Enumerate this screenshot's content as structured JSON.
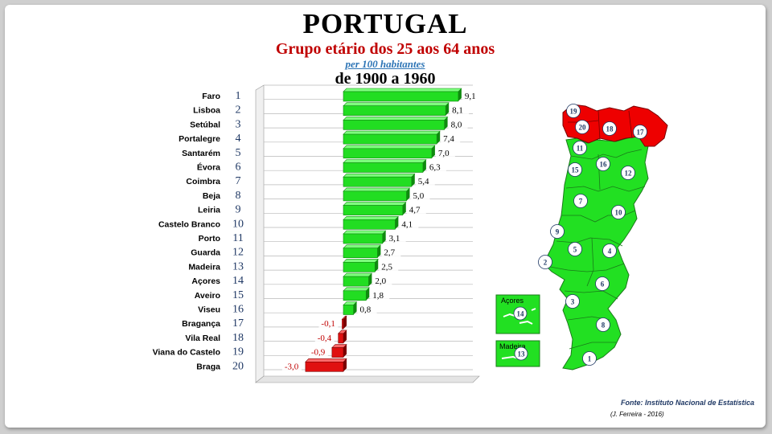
{
  "header": {
    "title": "PORTUGAL",
    "subtitle": "Grupo etário dos 25 aos 64 anos",
    "unit_note": "per 100 habitantes",
    "period": "de 1900 a 1960"
  },
  "chart_data": {
    "type": "bar",
    "orientation": "horizontal",
    "title": "PORTUGAL",
    "subtitle": "Grupo etário dos 25 aos 64 anos",
    "categories": [
      "Faro",
      "Lisboa",
      "Setúbal",
      "Portalegre",
      "Santarém",
      "Évora",
      "Coimbra",
      "Beja",
      "Leiria",
      "Castelo Branco",
      "Porto",
      "Guarda",
      "Madeira",
      "Açores",
      "Aveiro",
      "Viseu",
      "Bragança",
      "Vila Real",
      "Viana do Castelo",
      "Braga"
    ],
    "ranks": [
      "1",
      "2",
      "3",
      "4",
      "5",
      "6",
      "7",
      "8",
      "9",
      "10",
      "11",
      "12",
      "13",
      "14",
      "15",
      "16",
      "17",
      "18",
      "19",
      "20"
    ],
    "values": [
      9.1,
      8.1,
      8.0,
      7.4,
      7.0,
      6.3,
      5.4,
      5.0,
      4.7,
      4.1,
      3.1,
      2.7,
      2.5,
      2.0,
      1.8,
      0.8,
      -0.1,
      -0.4,
      -0.9,
      -3.0
    ],
    "value_labels": [
      "9,1",
      "8,1",
      "8,0",
      "7,4",
      "7,0",
      "6,3",
      "5,4",
      "5,0",
      "4,7",
      "4,1",
      "3,1",
      "2,7",
      "2,5",
      "2,0",
      "1,8",
      "0,8",
      "-0,1",
      "-0,4",
      "-0,9",
      "-3,0"
    ],
    "positive_color": "#22dd22",
    "negative_color": "#e01010",
    "grid": true
  },
  "map": {
    "acores_label": "Açores",
    "madeira_label": "Madeira",
    "district_numbers": [
      "19",
      "20",
      "18",
      "17",
      "11",
      "16",
      "15",
      "12",
      "7",
      "10",
      "9",
      "5",
      "4",
      "2",
      "6",
      "3",
      "8",
      "1"
    ],
    "mainland_color": "#22e022",
    "highlight_color": "#ee0000"
  },
  "footer": {
    "source": "Fonte: Instituto Nacional de Estatística",
    "author": "(J. Ferreira - 2016)"
  }
}
